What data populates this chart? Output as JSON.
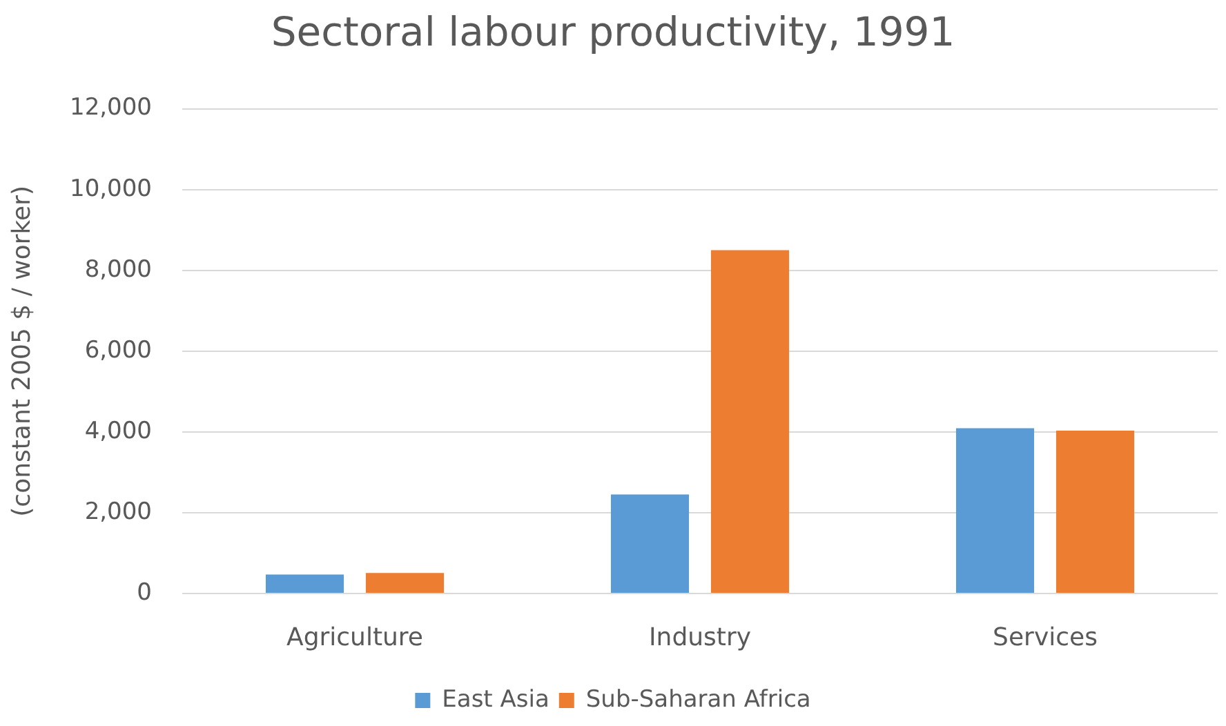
{
  "chart_data": {
    "type": "bar",
    "title": "Sectoral labour productivity, 1991",
    "ylabel": "(constant 2005 $ / worker)",
    "categories": [
      "Agriculture",
      "Industry",
      "Services"
    ],
    "series": [
      {
        "name": "East Asia",
        "color": "#5b9bd5",
        "values": [
          470,
          2450,
          4090
        ]
      },
      {
        "name": "Sub-Saharan Africa",
        "color": "#ed7d31",
        "values": [
          510,
          8500,
          4030
        ]
      }
    ],
    "ylim": [
      0,
      12000
    ],
    "yticks": [
      0,
      {
        "value": 2000,
        "label": "2,000"
      },
      {
        "value": 4000,
        "label": "4,000"
      },
      {
        "value": 6000,
        "label": "6,000"
      },
      {
        "value": 8000,
        "label": "8,000"
      },
      {
        "value": 10000,
        "label": "10,000"
      },
      {
        "value": 12000,
        "label": "12,000"
      }
    ],
    "grid": "y",
    "legend": "bottom"
  }
}
